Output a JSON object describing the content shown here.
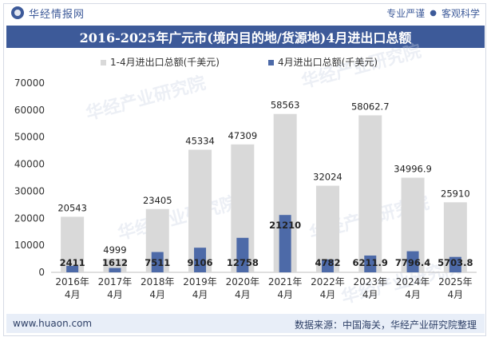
{
  "header": {
    "brand": "华经情报网",
    "tags": [
      "专业严谨",
      "客观科学"
    ]
  },
  "title": "2016-2025年广元市(境内目的地/货源地)4月进出口总额",
  "footer": {
    "website": "www.huaon.com",
    "source": "数据来源：中国海关，华经产业研究院整理"
  },
  "colors": {
    "bar_back": "#d9d9d9",
    "bar_front": "#4d6aa8",
    "accent": "#3d5a99"
  },
  "chart_data": {
    "type": "bar",
    "categories": [
      "2016年\n4月",
      "2017年\n4月",
      "2018年\n4月",
      "2019年\n4月",
      "2020年\n4月",
      "2021年\n4月",
      "2022年\n4月",
      "2023年\n4月",
      "2024年\n4月",
      "2025年\n4月"
    ],
    "series": [
      {
        "name": "1-4月进出口总额(千美元)",
        "values": [
          20543,
          4999,
          23405,
          45334,
          47309,
          58563,
          32024,
          58062.7,
          34996.9,
          25910
        ],
        "labels": [
          "20543",
          "4999",
          "23405",
          "45334",
          "47309",
          "58563",
          "32024",
          "58062.7",
          "34996.9",
          "25910"
        ]
      },
      {
        "name": "4月进出口总额(千美元)",
        "values": [
          2411,
          1612,
          7511,
          9106,
          12758,
          21210,
          4782,
          6211.9,
          7796.4,
          5703.8
        ],
        "labels": [
          "2411",
          "1612",
          "7511",
          "9106",
          "12758",
          "21210",
          "4782",
          "6211.9",
          "7796.4",
          "5703.8"
        ]
      }
    ],
    "yticks": [
      0,
      10000,
      20000,
      30000,
      40000,
      50000,
      60000,
      70000
    ],
    "ylim": [
      0,
      70000
    ],
    "grid": false,
    "legend_position": "top-center"
  }
}
